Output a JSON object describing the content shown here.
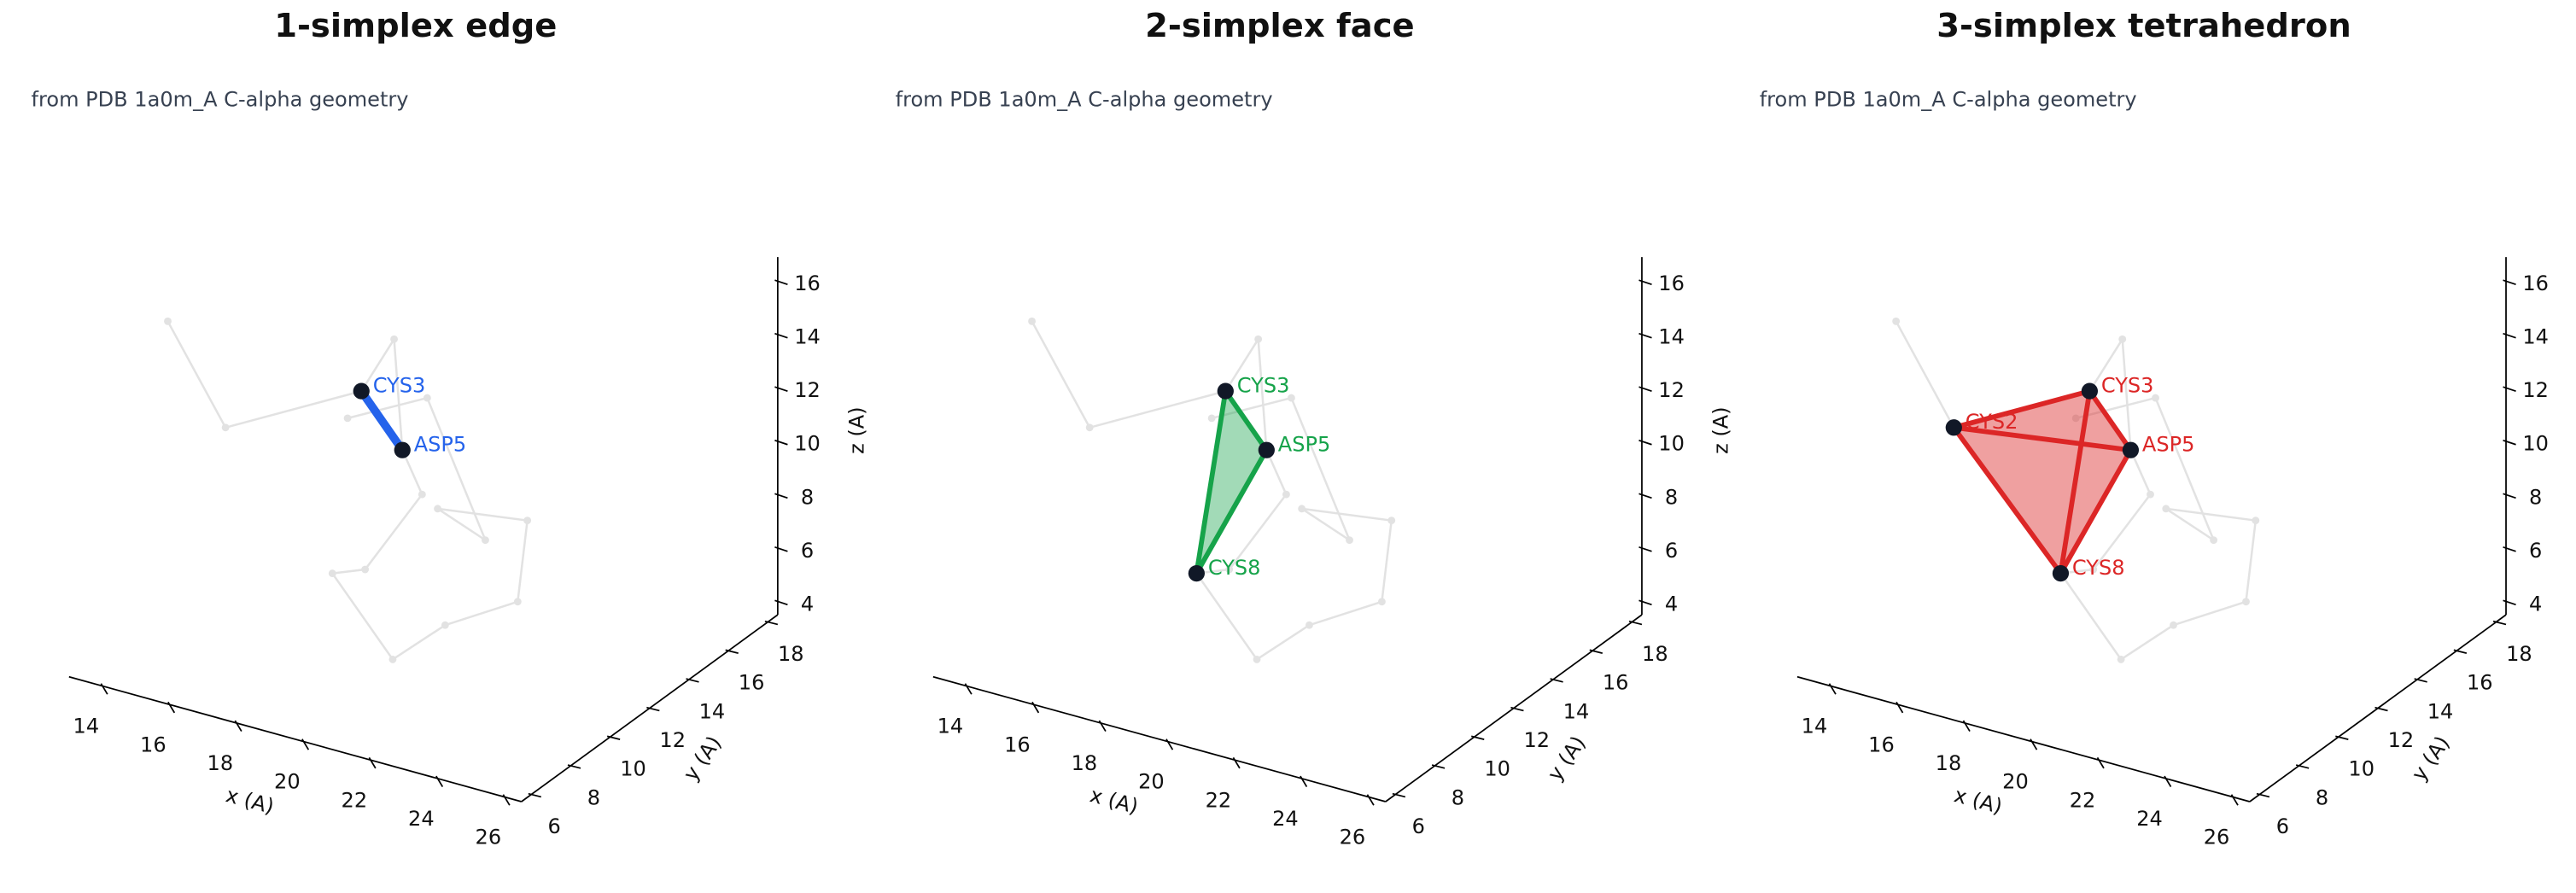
{
  "chart_data": [
    {
      "type": "simplex3d",
      "title": "1-simplex edge",
      "subtitle": "from PDB 1a0m_A C-alpha geometry",
      "xlabel": "x (A)",
      "ylabel": "y (A)",
      "zlabel": "z (A)",
      "xlim": [
        13,
        26.5
      ],
      "ylim": [
        5.5,
        18.5
      ],
      "zlim": [
        3.5,
        16.9
      ],
      "xticks": [
        14,
        16,
        18,
        20,
        22,
        24,
        26
      ],
      "yticks": [
        6,
        8,
        10,
        12,
        14,
        16,
        18
      ],
      "zticks": [
        4,
        6,
        8,
        10,
        12,
        14,
        16
      ],
      "backbone": {
        "color": "#e2e2e2",
        "x": [
          13.3,
          16.2,
          17.9,
          17.7,
          20.3,
          20.3,
          18.6,
          18.8,
          20.6,
          20.4,
          20.8,
          20.5,
          19,
          21.6,
          18.1,
          16.9
        ],
        "y": [
          10,
          8,
          12,
          14,
          10,
          11,
          11,
          9,
          9,
          12,
          15,
          16,
          14,
          12,
          15,
          13
        ],
        "z": [
          14.5,
          12.6,
          12.4,
          13.2,
          12.1,
          9.9,
          6.5,
          7.5,
          4.9,
          4.5,
          3.9,
          6.3,
          7.3,
          8.1,
          10.6,
          10.5
        ]
      },
      "simplex": {
        "color": "#2563eb",
        "labels": [
          "CYS3",
          "ASP5"
        ],
        "x": [
          17.9,
          20.3
        ],
        "y": [
          12,
          10
        ],
        "z": [
          12.4,
          12.1
        ]
      }
    },
    {
      "type": "simplex3d",
      "title": "2-simplex face",
      "subtitle": "from PDB 1a0m_A C-alpha geometry",
      "xlabel": "x (A)",
      "ylabel": "y (A)",
      "zlabel": "z (A)",
      "xlim": [
        13,
        26.5
      ],
      "ylim": [
        5.5,
        18.5
      ],
      "zlim": [
        3.5,
        16.9
      ],
      "xticks": [
        14,
        16,
        18,
        20,
        22,
        24,
        26
      ],
      "yticks": [
        6,
        8,
        10,
        12,
        14,
        16,
        18
      ],
      "zticks": [
        4,
        6,
        8,
        10,
        12,
        14,
        16
      ],
      "backbone": {
        "color": "#e2e2e2",
        "x": [
          13.3,
          16.2,
          17.9,
          17.7,
          20.3,
          20.3,
          18.6,
          18.8,
          20.6,
          20.4,
          20.8,
          20.5,
          19,
          21.6,
          18.1,
          16.9
        ],
        "y": [
          10,
          8,
          12,
          14,
          10,
          11,
          11,
          9,
          9,
          12,
          15,
          16,
          14,
          12,
          15,
          13
        ],
        "z": [
          14.5,
          12.6,
          12.4,
          13.2,
          12.1,
          9.9,
          6.5,
          7.5,
          4.9,
          4.5,
          3.9,
          6.3,
          7.3,
          8.1,
          10.6,
          10.5
        ]
      },
      "simplex": {
        "color": "#16a34a",
        "labels": [
          "CYS3",
          "ASP5",
          "CYS8"
        ],
        "x": [
          17.9,
          20.3,
          18.8
        ],
        "y": [
          12,
          10,
          9
        ],
        "z": [
          12.4,
          12.1,
          7.5
        ]
      }
    },
    {
      "type": "simplex3d",
      "title": "3-simplex tetrahedron",
      "subtitle": "from PDB 1a0m_A C-alpha geometry",
      "xlabel": "x (A)",
      "ylabel": "y (A)",
      "zlabel": "z (A)",
      "xlim": [
        13,
        26.5
      ],
      "ylim": [
        5.5,
        18.5
      ],
      "zlim": [
        3.5,
        16.9
      ],
      "xticks": [
        14,
        16,
        18,
        20,
        22,
        24,
        26
      ],
      "yticks": [
        6,
        8,
        10,
        12,
        14,
        16,
        18
      ],
      "zticks": [
        4,
        6,
        8,
        10,
        12,
        14,
        16
      ],
      "backbone": {
        "color": "#e2e2e2",
        "x": [
          13.3,
          16.2,
          17.9,
          17.7,
          20.3,
          20.3,
          18.6,
          18.8,
          20.6,
          20.4,
          20.8,
          20.5,
          19,
          21.6,
          18.1,
          16.9
        ],
        "y": [
          10,
          8,
          12,
          14,
          10,
          11,
          11,
          9,
          9,
          12,
          15,
          16,
          14,
          12,
          15,
          13
        ],
        "z": [
          14.5,
          12.6,
          12.4,
          13.2,
          12.1,
          9.9,
          6.5,
          7.5,
          4.9,
          4.5,
          3.9,
          6.3,
          7.3,
          8.1,
          10.6,
          10.5
        ]
      },
      "simplex": {
        "color": "#dc2626",
        "labels": [
          "CYS2",
          "CYS3",
          "ASP5",
          "CYS8"
        ],
        "x": [
          16.2,
          17.9,
          20.3,
          18.8
        ],
        "y": [
          8,
          12,
          10,
          9
        ],
        "z": [
          12.6,
          12.4,
          12.1,
          7.5
        ]
      }
    }
  ]
}
